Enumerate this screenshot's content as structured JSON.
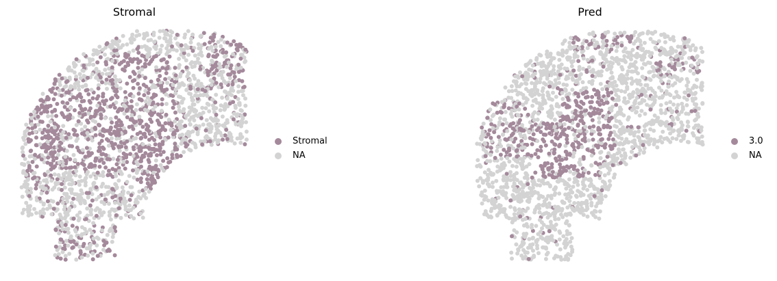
{
  "chart_data": [
    {
      "type": "scatter",
      "title": "Stromal",
      "legend": {
        "placement": "right",
        "entries": [
          {
            "label": "Stromal",
            "color": "#a4899b"
          },
          {
            "label": "NA",
            "color": "#d3d3d3"
          }
        ]
      },
      "grid": false,
      "axes_visible": false
    },
    {
      "type": "scatter",
      "title": "Pred",
      "legend": {
        "placement": "right",
        "entries": [
          {
            "label": "3.0",
            "color": "#a4899b"
          },
          {
            "label": "NA",
            "color": "#d3d3d3"
          }
        ]
      },
      "grid": false,
      "axes_visible": false
    }
  ]
}
